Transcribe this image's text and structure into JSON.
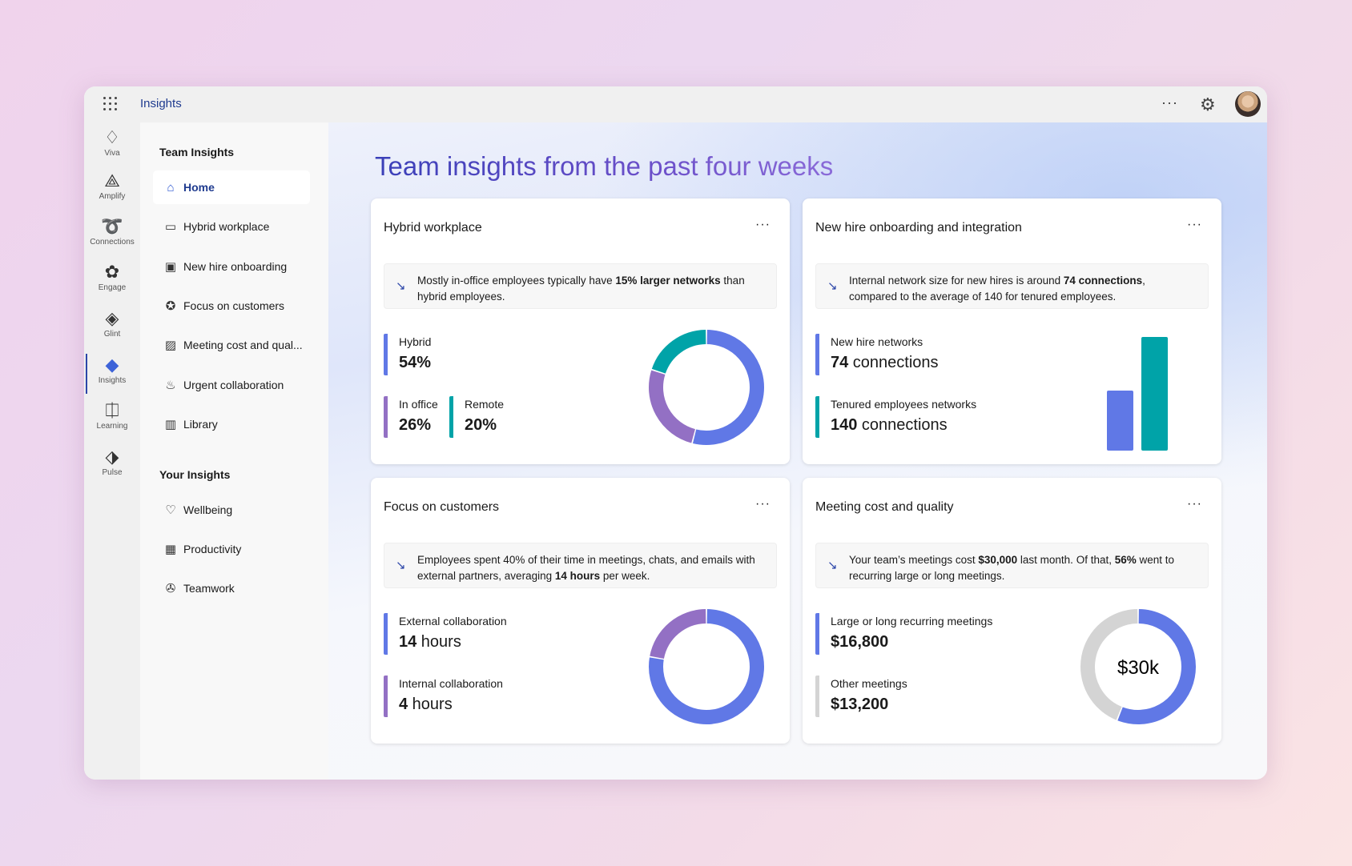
{
  "app": {
    "title": "Insights"
  },
  "colors": {
    "blue": "#6078e6",
    "purple": "#9370c4",
    "teal": "#00a3a8",
    "gray": "#d4d4d4"
  },
  "rail": [
    {
      "label": "Viva",
      "icon": "viva-icon"
    },
    {
      "label": "Amplify",
      "icon": "amplify-icon"
    },
    {
      "label": "Connections",
      "icon": "connections-icon"
    },
    {
      "label": "Engage",
      "icon": "engage-icon"
    },
    {
      "label": "Glint",
      "icon": "glint-icon"
    },
    {
      "label": "Insights",
      "icon": "insights-icon"
    },
    {
      "label": "Learning",
      "icon": "learning-icon"
    },
    {
      "label": "Pulse",
      "icon": "pulse-icon"
    }
  ],
  "nav": {
    "team_heading": "Team Insights",
    "your_heading": "Your Insights",
    "team_items": [
      "Home",
      "Hybrid workplace",
      "New hire onboarding",
      "Focus on customers",
      "Meeting cost and qual...",
      "Urgent collaboration",
      "Library"
    ],
    "your_items": [
      "Wellbeing",
      "Productivity",
      "Teamwork"
    ]
  },
  "page": {
    "title": "Team insights from the past four weeks"
  },
  "cards": {
    "hybrid": {
      "title": "Hybrid workplace",
      "insight_pre": "Mostly in-office employees typically have ",
      "insight_bold": "15% larger networks",
      "insight_post": " than hybrid employees.",
      "m1_label": "Hybrid",
      "m1_value": "54%",
      "m2_label": "In office",
      "m2_value": "26%",
      "m3_label": "Remote",
      "m3_value": "20%"
    },
    "newhire": {
      "title": "New hire onboarding and integration",
      "insight_pre": "Internal network size for new hires is around ",
      "insight_bold": "74 connections",
      "insight_post": ", compared to the average of 140 for tenured employees.",
      "m1_label": "New hire networks",
      "m1_num": "74",
      "m1_unit": " connections",
      "m2_label": "Tenured employees networks",
      "m2_num": "140",
      "m2_unit": " connections"
    },
    "focus": {
      "title": "Focus on customers",
      "insight_pre": "Employees spent 40% of their time in meetings, chats, and emails with external partners, averaging ",
      "insight_bold": "14 hours",
      "insight_post": " per week.",
      "m1_label": "External collaboration",
      "m1_num": "14",
      "m1_unit": " hours",
      "m2_label": "Internal collaboration",
      "m2_num": "4",
      "m2_unit": " hours"
    },
    "meeting": {
      "title": "Meeting cost and quality",
      "insight_pre": "Your team’s meetings cost ",
      "insight_bold": "$30,000",
      "insight_mid": " last month. Of that, ",
      "insight_bold2": "56%",
      "insight_post": " went to recurring large or long meetings.",
      "m1_label": "Large or long recurring meetings",
      "m1_value": "$16,800",
      "m2_label": "Other meetings",
      "m2_value": "$13,200",
      "center": "$30k"
    }
  },
  "chart_data": [
    {
      "type": "pie",
      "name": "hybrid",
      "labels": [
        "Hybrid",
        "In office",
        "Remote"
      ],
      "values": [
        54,
        26,
        20
      ],
      "colors": [
        "#6078e6",
        "#9370c4",
        "#00a3a8"
      ]
    },
    {
      "type": "bar",
      "name": "newhire",
      "categories": [
        "New hire networks",
        "Tenured employees networks"
      ],
      "values": [
        74,
        140
      ],
      "colors": [
        "#6078e6",
        "#00a3a8"
      ]
    },
    {
      "type": "pie",
      "name": "focus",
      "labels": [
        "External collaboration",
        "Internal collaboration"
      ],
      "values": [
        14,
        4
      ],
      "colors": [
        "#6078e6",
        "#9370c4"
      ]
    },
    {
      "type": "pie",
      "name": "meeting",
      "labels": [
        "Large or long recurring meetings",
        "Other meetings"
      ],
      "values": [
        16800,
        13200
      ],
      "colors": [
        "#6078e6",
        "#d4d4d4"
      ]
    }
  ]
}
